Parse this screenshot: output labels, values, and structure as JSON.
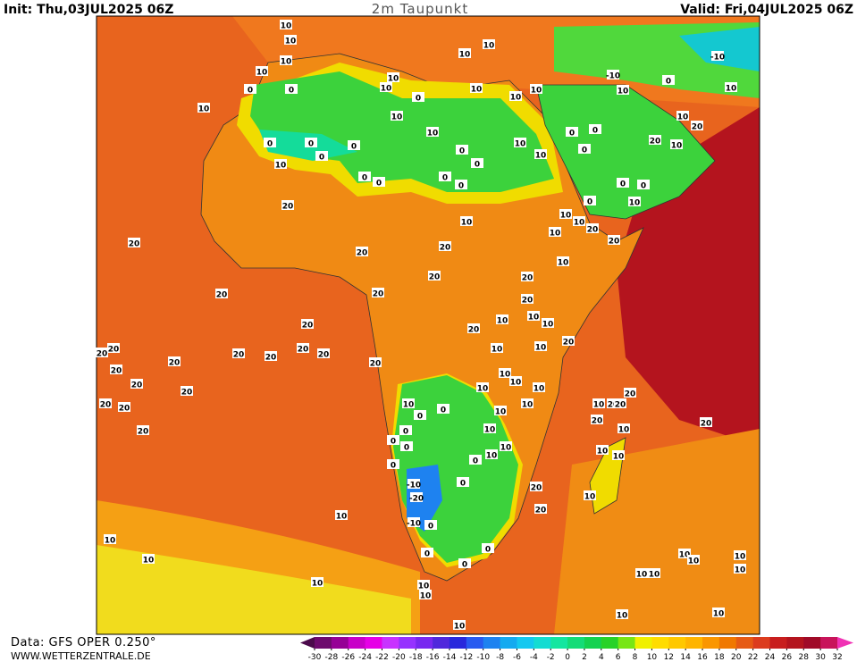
{
  "header": {
    "init": "Init: Thu,03JUL2025 06Z",
    "title": "2m Taupunkt",
    "valid": "Valid: Fri,04JUL2025 06Z"
  },
  "footer": {
    "source": "Data: GFS OPER 0.250°",
    "site": "WWW.WETTERZENTRALE.DE"
  },
  "colorbar": {
    "ticks": [
      -30,
      -28,
      -26,
      -24,
      -22,
      -20,
      -18,
      -16,
      -14,
      -12,
      -10,
      -8,
      -6,
      -4,
      -2,
      0,
      2,
      4,
      6,
      8,
      10,
      12,
      14,
      16,
      18,
      20,
      22,
      24,
      26,
      28,
      30,
      32
    ],
    "colors": [
      "#4b0a4b",
      "#6e0a6e",
      "#960096",
      "#c800c8",
      "#e600e6",
      "#c832ff",
      "#9632ff",
      "#7828f0",
      "#5028dc",
      "#2828dc",
      "#285af0",
      "#1e82f0",
      "#14aaf0",
      "#14c8f0",
      "#14dcd2",
      "#14e6a0",
      "#14dc78",
      "#14d250",
      "#28d228",
      "#78e614",
      "#f0f000",
      "#ffdc00",
      "#ffc800",
      "#ffb400",
      "#fa9600",
      "#f07800",
      "#e65a14",
      "#dc3c1e",
      "#c81e1e",
      "#b4141e",
      "#a00a28",
      "#c8145a",
      "#f032b4"
    ]
  },
  "contour_labels": [
    "10",
    "10",
    "10",
    "10",
    "0",
    "10",
    "0",
    "10",
    "10",
    "10",
    "0",
    "0",
    "0",
    "0",
    "0",
    "10",
    "10",
    "0",
    "0",
    "0",
    "0",
    "0",
    "0",
    "10",
    "10",
    "10",
    "10",
    "10",
    "10",
    "10",
    "-10",
    "10",
    "0",
    "10",
    "20",
    "20",
    "10",
    "-10",
    "10",
    "0",
    "0",
    "0",
    "0",
    "0",
    "0",
    "10",
    "10",
    "10",
    "10",
    "20",
    "20",
    "10",
    "10",
    "20",
    "20",
    "20",
    "20",
    "20",
    "20",
    "20",
    "20",
    "20",
    "20",
    "10",
    "20",
    "10",
    "10",
    "10",
    "20",
    "10",
    "20",
    "20",
    "20",
    "20",
    "20",
    "20",
    "20",
    "20",
    "20",
    "20",
    "20",
    "20",
    "20",
    "20",
    "20",
    "10",
    "10",
    "10",
    "10",
    "10",
    "0",
    "0",
    "10",
    "10",
    "10",
    "20",
    "20",
    "20",
    "20",
    "10",
    "0",
    "0",
    "10",
    "10",
    "10",
    "10",
    "0",
    "0",
    "10",
    "0",
    "-10",
    "0",
    "-20",
    "20",
    "10",
    "20",
    "10",
    "-10",
    "0",
    "10",
    "0",
    "0",
    "0",
    "10",
    "10",
    "10",
    "10",
    "10",
    "10",
    "10",
    "10",
    "10",
    "10",
    "10",
    "10",
    "10"
  ]
}
